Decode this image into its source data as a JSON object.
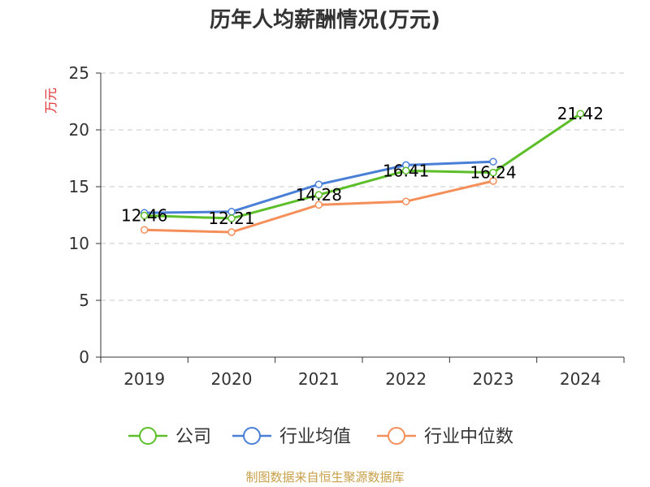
{
  "chart_data": {
    "type": "line",
    "title": "历年人均薪酬情况(万元)",
    "ylabel": "万元",
    "xlabel": "",
    "ylim": [
      0,
      25
    ],
    "yticks": [
      0,
      5,
      10,
      15,
      20,
      25
    ],
    "categories": [
      "2019",
      "2020",
      "2021",
      "2022",
      "2023",
      "2024"
    ],
    "grid": true,
    "legend_position": "bottom",
    "series": [
      {
        "name": "公司",
        "color": "#5cbf2a",
        "values": [
          12.46,
          12.21,
          14.28,
          16.41,
          16.24,
          21.42
        ],
        "labels": [
          "12.46",
          "12.21",
          "14.28",
          "16.41",
          "16.24",
          "21.42"
        ]
      },
      {
        "name": "行业均值",
        "color": "#4a7fd8",
        "values": [
          12.7,
          12.8,
          15.2,
          16.9,
          17.2,
          null
        ]
      },
      {
        "name": "行业中位数",
        "color": "#f58f5a",
        "values": [
          11.2,
          11.0,
          13.4,
          13.7,
          15.5,
          null
        ]
      }
    ]
  },
  "source_note": "制图数据来自恒生聚源数据库"
}
